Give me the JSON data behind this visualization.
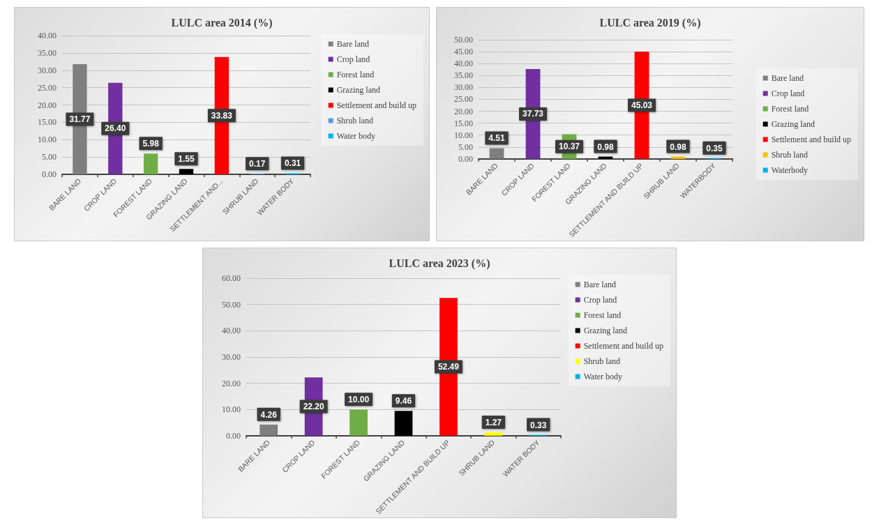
{
  "chart_data": [
    {
      "type": "bar",
      "title": "LULC area 2014 (%)",
      "categories": [
        "BARE LAND",
        "CROP LAND",
        "FOREST LAND",
        "GRAZING LAND",
        "SETTLEMENT AND...",
        "SHRUB LAND",
        "WATER BODY"
      ],
      "series": [
        {
          "name": "Bare land",
          "color": "#7f7f7f",
          "values": [
            31.77,
            null,
            null,
            null,
            null,
            null,
            null
          ],
          "value_labels": [
            "31.77",
            null,
            null,
            null,
            null,
            null,
            null
          ]
        },
        {
          "name": "Crop land",
          "color": "#7030a0",
          "values": [
            null,
            26.4,
            null,
            null,
            null,
            null,
            null
          ],
          "value_labels": [
            null,
            "26.40",
            null,
            null,
            null,
            null,
            null
          ]
        },
        {
          "name": "Forest land",
          "color": "#70ad47",
          "values": [
            null,
            null,
            5.98,
            null,
            null,
            null,
            null
          ],
          "value_labels": [
            null,
            null,
            "5.98",
            null,
            null,
            null,
            null
          ]
        },
        {
          "name": "Grazing land",
          "color": "#000000",
          "values": [
            null,
            null,
            null,
            1.55,
            null,
            null,
            null
          ],
          "value_labels": [
            null,
            null,
            null,
            "1.55",
            null,
            null,
            null
          ]
        },
        {
          "name": "Settlement and build up",
          "color": "#ff0000",
          "values": [
            null,
            null,
            null,
            null,
            33.83,
            null,
            null
          ],
          "value_labels": [
            null,
            null,
            null,
            null,
            "33.83",
            null,
            null
          ]
        },
        {
          "name": "Shrub land",
          "color": "#5b9bd5",
          "values": [
            null,
            null,
            null,
            null,
            null,
            0.17,
            null
          ],
          "value_labels": [
            null,
            null,
            null,
            null,
            null,
            "0.17",
            null
          ]
        },
        {
          "name": "Water body",
          "color": "#00b0f0",
          "values": [
            null,
            null,
            null,
            null,
            null,
            null,
            0.31
          ],
          "value_labels": [
            null,
            null,
            null,
            null,
            null,
            null,
            "0.31"
          ]
        }
      ],
      "ylim": [
        0,
        40
      ],
      "yticks": [
        {
          "value": 0,
          "label": "0.00"
        },
        {
          "value": 5,
          "label": "5.00"
        },
        {
          "value": 10,
          "label": "10.00"
        },
        {
          "value": 15,
          "label": "15.00"
        },
        {
          "value": 20,
          "label": "20.00"
        },
        {
          "value": 25,
          "label": "25.00"
        },
        {
          "value": 30,
          "label": "30.00"
        },
        {
          "value": 35,
          "label": "35.00"
        },
        {
          "value": 40,
          "label": "40.00"
        }
      ],
      "grid": "y",
      "legend": "top right"
    },
    {
      "type": "bar",
      "title": "LULC area 2019 (%)",
      "categories": [
        "BARE LAND",
        "CROP LAND",
        "FOREST LAND",
        "GRAZING LAND",
        "SETTLEMENT AND BUILD UP",
        "SHRUB LAND",
        "WATERBODY"
      ],
      "series": [
        {
          "name": "Bare land",
          "color": "#7f7f7f",
          "values": [
            4.51,
            null,
            null,
            null,
            null,
            null,
            null
          ],
          "value_labels": [
            "4.51",
            null,
            null,
            null,
            null,
            null,
            null
          ]
        },
        {
          "name": "Crop land",
          "color": "#7030a0",
          "values": [
            null,
            37.73,
            null,
            null,
            null,
            null,
            null
          ],
          "value_labels": [
            null,
            "37.73",
            null,
            null,
            null,
            null,
            null
          ]
        },
        {
          "name": "Forest land",
          "color": "#70ad47",
          "values": [
            null,
            null,
            10.37,
            null,
            null,
            null,
            null
          ],
          "value_labels": [
            null,
            null,
            "10.37",
            null,
            null,
            null,
            null
          ]
        },
        {
          "name": "Grazing land",
          "color": "#000000",
          "values": [
            null,
            null,
            null,
            0.98,
            null,
            null,
            null
          ],
          "value_labels": [
            null,
            null,
            null,
            "0.98",
            null,
            null,
            null
          ]
        },
        {
          "name": "Settlement and build up",
          "color": "#ff0000",
          "values": [
            null,
            null,
            null,
            null,
            45.03,
            null,
            null
          ],
          "value_labels": [
            null,
            null,
            null,
            null,
            "45.03",
            null,
            null
          ]
        },
        {
          "name": "Shrub land",
          "color": "#ffc000",
          "values": [
            null,
            null,
            null,
            null,
            null,
            0.98,
            null
          ],
          "value_labels": [
            null,
            null,
            null,
            null,
            null,
            "0.98",
            null
          ]
        },
        {
          "name": "Waterbody",
          "color": "#00b0f0",
          "values": [
            null,
            null,
            null,
            null,
            null,
            null,
            0.35
          ],
          "value_labels": [
            null,
            null,
            null,
            null,
            null,
            null,
            "0.35"
          ]
        }
      ],
      "ylim": [
        0,
        50
      ],
      "yticks": [
        {
          "value": 0,
          "label": "0.00"
        },
        {
          "value": 5,
          "label": "5.00"
        },
        {
          "value": 10,
          "label": "10.00"
        },
        {
          "value": 15,
          "label": "15.00"
        },
        {
          "value": 20,
          "label": "20.00"
        },
        {
          "value": 25,
          "label": "25.00"
        },
        {
          "value": 30,
          "label": "30.00"
        },
        {
          "value": 35,
          "label": "35.00"
        },
        {
          "value": 40,
          "label": "40.00"
        },
        {
          "value": 45,
          "label": "45.00"
        },
        {
          "value": 50,
          "label": "50.00"
        }
      ],
      "grid": "y",
      "legend": "right"
    },
    {
      "type": "bar",
      "title": "LULC area 2023 (%)",
      "categories": [
        "BARE LAND",
        "CROP LAND",
        "FOREST LAND",
        "GRAZING LAND",
        "SETTLEMENT AND BUILD UP",
        "SHRUB LAND",
        "WATER BODY"
      ],
      "series": [
        {
          "name": "Bare land",
          "color": "#7f7f7f",
          "values": [
            4.26,
            null,
            null,
            null,
            null,
            null,
            null
          ],
          "value_labels": [
            "4.26",
            null,
            null,
            null,
            null,
            null,
            null
          ]
        },
        {
          "name": "Crop land",
          "color": "#7030a0",
          "values": [
            null,
            22.2,
            null,
            null,
            null,
            null,
            null
          ],
          "value_labels": [
            null,
            "22.20",
            null,
            null,
            null,
            null,
            null
          ]
        },
        {
          "name": "Forest land",
          "color": "#70ad47",
          "values": [
            null,
            null,
            10.0,
            null,
            null,
            null,
            null
          ],
          "value_labels": [
            null,
            null,
            "10.00",
            null,
            null,
            null,
            null
          ]
        },
        {
          "name": "Grazing land",
          "color": "#000000",
          "values": [
            null,
            null,
            null,
            9.46,
            null,
            null,
            null
          ],
          "value_labels": [
            null,
            null,
            null,
            "9.46",
            null,
            null,
            null
          ]
        },
        {
          "name": "Settlement and build up",
          "color": "#ff0000",
          "values": [
            null,
            null,
            null,
            null,
            52.49,
            null,
            null
          ],
          "value_labels": [
            null,
            null,
            null,
            null,
            "52.49",
            null,
            null
          ]
        },
        {
          "name": "Shrub land",
          "color": "#ffff00",
          "values": [
            null,
            null,
            null,
            null,
            null,
            1.27,
            null
          ],
          "value_labels": [
            null,
            null,
            null,
            null,
            null,
            "1.27",
            null
          ]
        },
        {
          "name": "Water body",
          "color": "#00b0f0",
          "values": [
            null,
            null,
            null,
            null,
            null,
            null,
            0.33
          ],
          "value_labels": [
            null,
            null,
            null,
            null,
            null,
            null,
            "0.33"
          ]
        }
      ],
      "ylim": [
        0,
        60
      ],
      "yticks": [
        {
          "value": 0,
          "label": "0.00"
        },
        {
          "value": 10,
          "label": "10.00"
        },
        {
          "value": 20,
          "label": "20.00"
        },
        {
          "value": 30,
          "label": "30.00"
        },
        {
          "value": 40,
          "label": "40.00"
        },
        {
          "value": 50,
          "label": "50.00"
        },
        {
          "value": 60,
          "label": "60.00"
        }
      ],
      "grid": "y",
      "legend": "top right"
    }
  ]
}
